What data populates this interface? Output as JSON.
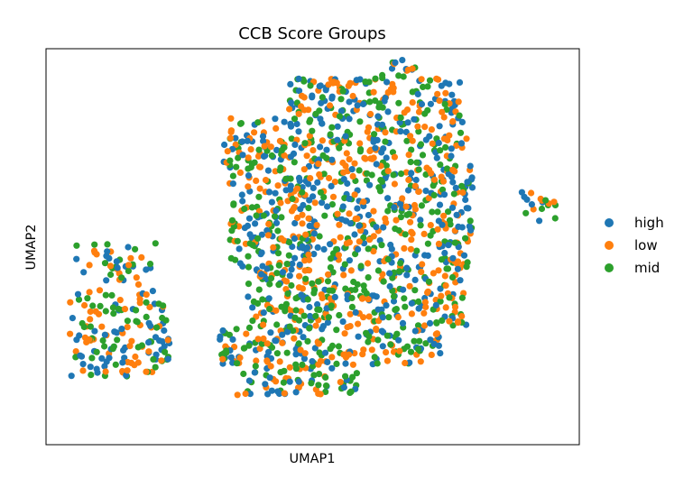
{
  "chart_data": {
    "type": "scatter",
    "title": "CCB Score Groups",
    "xlabel": "UMAP1",
    "ylabel": "UMAP2",
    "xlim": [
      -7.0,
      11.0
    ],
    "ylim": [
      -7.0,
      13.0
    ],
    "xticks": [],
    "yticks": [],
    "grid": false,
    "legend_position": "right",
    "marker": "filled circle",
    "series": [
      {
        "name": "high",
        "color": "#1f77b4"
      },
      {
        "name": "low",
        "color": "#ff7f0e"
      },
      {
        "name": "mid",
        "color": "#2ca02c"
      }
    ],
    "clusters": [
      {
        "name": "main",
        "bounds": {
          "x_min": -1.2,
          "x_max": 7.4,
          "y_min": -4.5,
          "y_max": 12.5
        },
        "points_per_group": 470
      },
      {
        "name": "left-lower",
        "bounds": {
          "x_min": -6.2,
          "x_max": -2.8,
          "y_min": -3.6,
          "y_max": 0.8
        },
        "points_per_group": 50
      },
      {
        "name": "left-upper",
        "bounds": {
          "x_min": -6.0,
          "x_max": -3.3,
          "y_min": 1.0,
          "y_max": 3.2
        },
        "points_per_group": 14
      },
      {
        "name": "right-isolated",
        "bounds": {
          "x_min": 9.0,
          "x_max": 10.2,
          "y_min": 4.2,
          "y_max": 5.8
        },
        "points_per_group": 6
      }
    ]
  }
}
